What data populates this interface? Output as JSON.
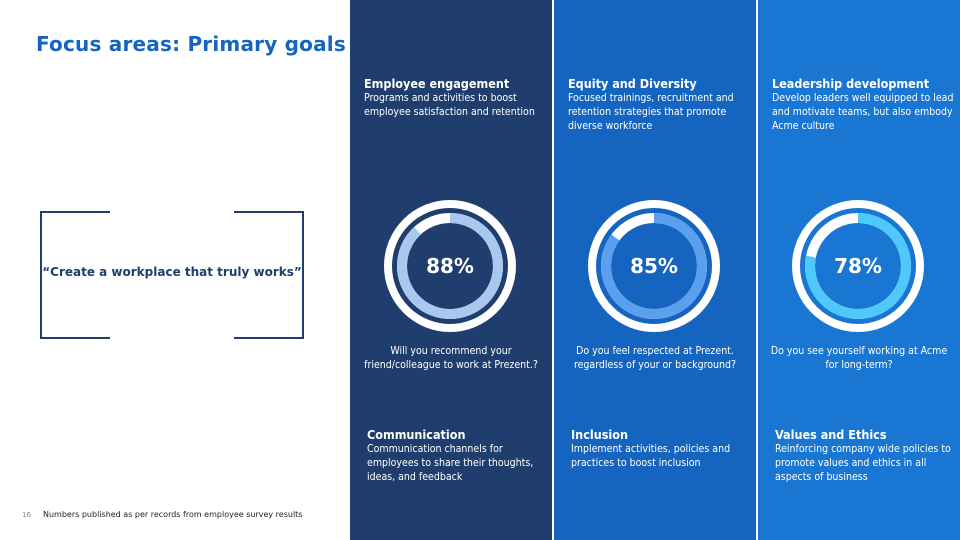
{
  "slide": {
    "title": "Focus areas: Primary goals",
    "quote": "“Create a workplace that truly works”",
    "page_number": "16",
    "footnote": "Numbers published as per records from employee survey results"
  },
  "colors": {
    "title": "#1565c0",
    "col1_bg": "#1f3d6d",
    "col2_bg": "#1565c0",
    "col3_bg": "#1976d2",
    "col1_arc": "#a9c8ef",
    "col2_arc": "#5aa0ef",
    "col3_arc": "#4fc8fb"
  },
  "columns": [
    {
      "title": "Employee engagement",
      "description": "Programs and activities to boost employee satisfaction and retention",
      "percent_label": "88%",
      "percent": 88,
      "question": "Will you recommend your friend/colleague to work at Prezent.?",
      "footer_title": "Communication",
      "footer_description": "Communication channels for employees to share their thoughts, ideas, and feedback"
    },
    {
      "title": "Equity and Diversity",
      "description": "Focused trainings, recruitment and retention strategies that promote diverse workforce",
      "percent_label": "85%",
      "percent": 85,
      "question": "Do you feel respected at Prezent. regardless of your or background?",
      "footer_title": "Inclusion",
      "footer_description": "Implement activities, policies and practices to boost inclusion"
    },
    {
      "title": "Leadership development",
      "description": "Develop leaders well equipped to lead and motivate teams, but also embody Acme culture",
      "percent_label": "78%",
      "percent": 78,
      "question": "Do you see yourself working at Acme for long-term?",
      "footer_title": "Values and Ethics",
      "footer_description": "Reinforcing company wide policies to promote values and ethics in all aspects of business"
    }
  ]
}
